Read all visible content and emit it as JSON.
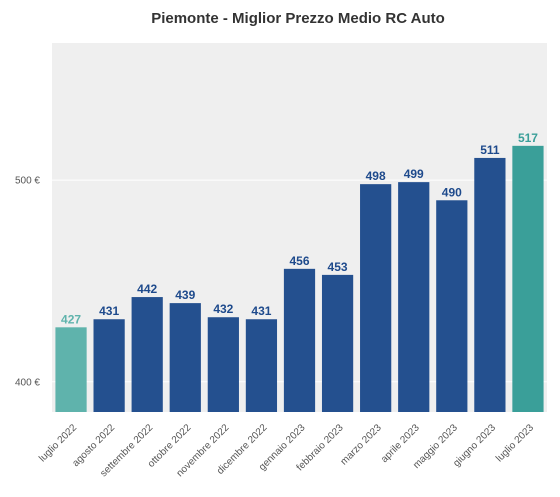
{
  "chart_data": {
    "type": "bar",
    "title": "Piemonte - Miglior Prezzo Medio RC Auto",
    "xlabel": "",
    "ylabel": "",
    "categories": [
      "luglio 2022",
      "agosto 2022",
      "settembre 2022",
      "ottobre 2022",
      "novembre 2022",
      "dicembre 2022",
      "gennaio 2023",
      "febbraio 2023",
      "marzo 2023",
      "aprile 2023",
      "maggio 2023",
      "giugno 2023",
      "luglio 2023"
    ],
    "values": [
      427,
      431,
      442,
      439,
      432,
      431,
      456,
      453,
      498,
      499,
      490,
      511,
      517
    ],
    "value_labels": [
      "427",
      "431",
      "442",
      "439",
      "432",
      "431",
      "456",
      "453",
      "498",
      "499",
      "490",
      "511",
      "517"
    ],
    "bar_colors": [
      "#5fb3ac",
      "#24508f",
      "#24508f",
      "#24508f",
      "#24508f",
      "#24508f",
      "#24508f",
      "#24508f",
      "#24508f",
      "#24508f",
      "#24508f",
      "#24508f",
      "#3a9f99"
    ],
    "label_colors": [
      "#5fb3ac",
      "#1e4a8c",
      "#1e4a8c",
      "#1e4a8c",
      "#1e4a8c",
      "#1e4a8c",
      "#1e4a8c",
      "#1e4a8c",
      "#1e4a8c",
      "#1e4a8c",
      "#1e4a8c",
      "#1e4a8c",
      "#3a9f99"
    ],
    "ylim": [
      385,
      568
    ],
    "yticks": [
      400,
      500
    ],
    "ytick_labels": [
      "400 €",
      "500 €"
    ],
    "grid": true,
    "background": "#efefef",
    "gridline_color": "#ffffff"
  }
}
